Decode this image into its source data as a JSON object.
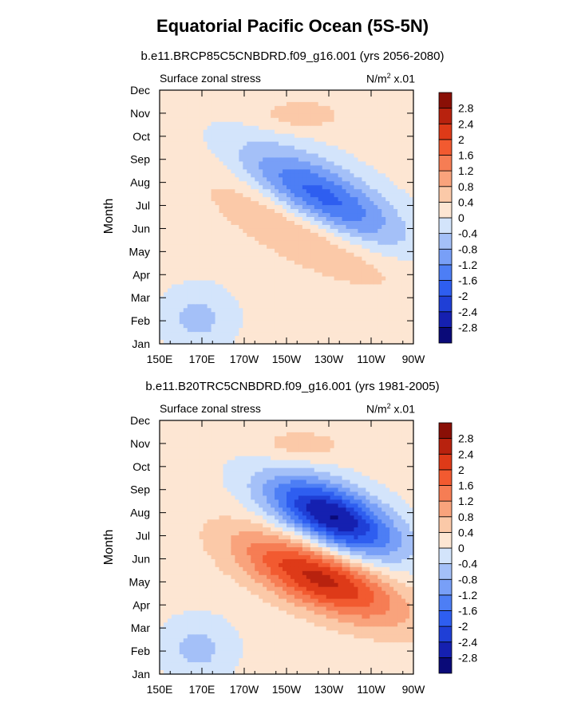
{
  "title": "Equatorial Pacific Ocean (5S-5N)",
  "chart_data": [
    {
      "type": "heatmap",
      "subtitle": "b.e11.BRCP85C5CNBDRD.f09_g16.001 (yrs 2056-2080)",
      "variable": "Surface zonal stress",
      "units_base": "N/m",
      "units_exp": "2",
      "units_scale": " x.01",
      "ylabel": "Month",
      "x_ticks": [
        "150E",
        "170E",
        "170W",
        "150W",
        "130W",
        "110W",
        "90W"
      ],
      "y_ticks": [
        "Jan",
        "Feb",
        "Mar",
        "Apr",
        "May",
        "Jun",
        "Jul",
        "Aug",
        "Sep",
        "Oct",
        "Nov",
        "Dec"
      ],
      "pos_center": [
        0.6,
        0.47
      ],
      "pos_sigma": [
        0.24,
        0.1
      ],
      "pos_amp": 2.1,
      "neg_center": [
        0.63,
        0.54
      ],
      "neg_sigma": [
        0.22,
        0.11
      ],
      "neg_amp": -3.0,
      "band_slope": 0.44,
      "colorbar_labels": [
        "2.8",
        "2.4",
        "2",
        "1.6",
        "1.2",
        "0.8",
        "0.4",
        "0",
        "-0.4",
        "-0.8",
        "-1.2",
        "-1.6",
        "-2",
        "-2.4",
        "-2.8"
      ]
    },
    {
      "type": "heatmap",
      "subtitle": "b.e11.B20TRC5CNBDRD.f09_g16.001 (yrs 1981-2005)",
      "variable": "Surface zonal stress",
      "units_base": "N/m",
      "units_exp": "2",
      "units_scale": " x.01",
      "ylabel": "Month",
      "x_ticks": [
        "150E",
        "170E",
        "170W",
        "150W",
        "130W",
        "110W",
        "90W"
      ],
      "y_ticks": [
        "Jan",
        "Feb",
        "Mar",
        "Apr",
        "May",
        "Jun",
        "Jul",
        "Aug",
        "Sep",
        "Oct",
        "Nov",
        "Dec"
      ],
      "pos_center": [
        0.63,
        0.38
      ],
      "pos_sigma": [
        0.22,
        0.09
      ],
      "pos_amp": 2.4,
      "neg_center": [
        0.68,
        0.62
      ],
      "neg_sigma": [
        0.18,
        0.09
      ],
      "neg_amp": -3.0,
      "band_slope": 0.36,
      "colorbar_labels": [
        "2.8",
        "2.4",
        "2",
        "1.6",
        "1.2",
        "0.8",
        "0.4",
        "0",
        "-0.4",
        "-0.8",
        "-1.2",
        "-1.6",
        "-2",
        "-2.4",
        "-2.8"
      ]
    }
  ],
  "colors": {
    "levels": [
      "#0a0a78",
      "#1520b0",
      "#1f3fd6",
      "#2e5ef0",
      "#4d7ef5",
      "#789ff7",
      "#a4c0f8",
      "#d3e4fb",
      "#fde6d3",
      "#fbc9a8",
      "#f9a37c",
      "#f67d54",
      "#f25a30",
      "#de3a18",
      "#b8220e",
      "#8a0f06"
    ]
  }
}
